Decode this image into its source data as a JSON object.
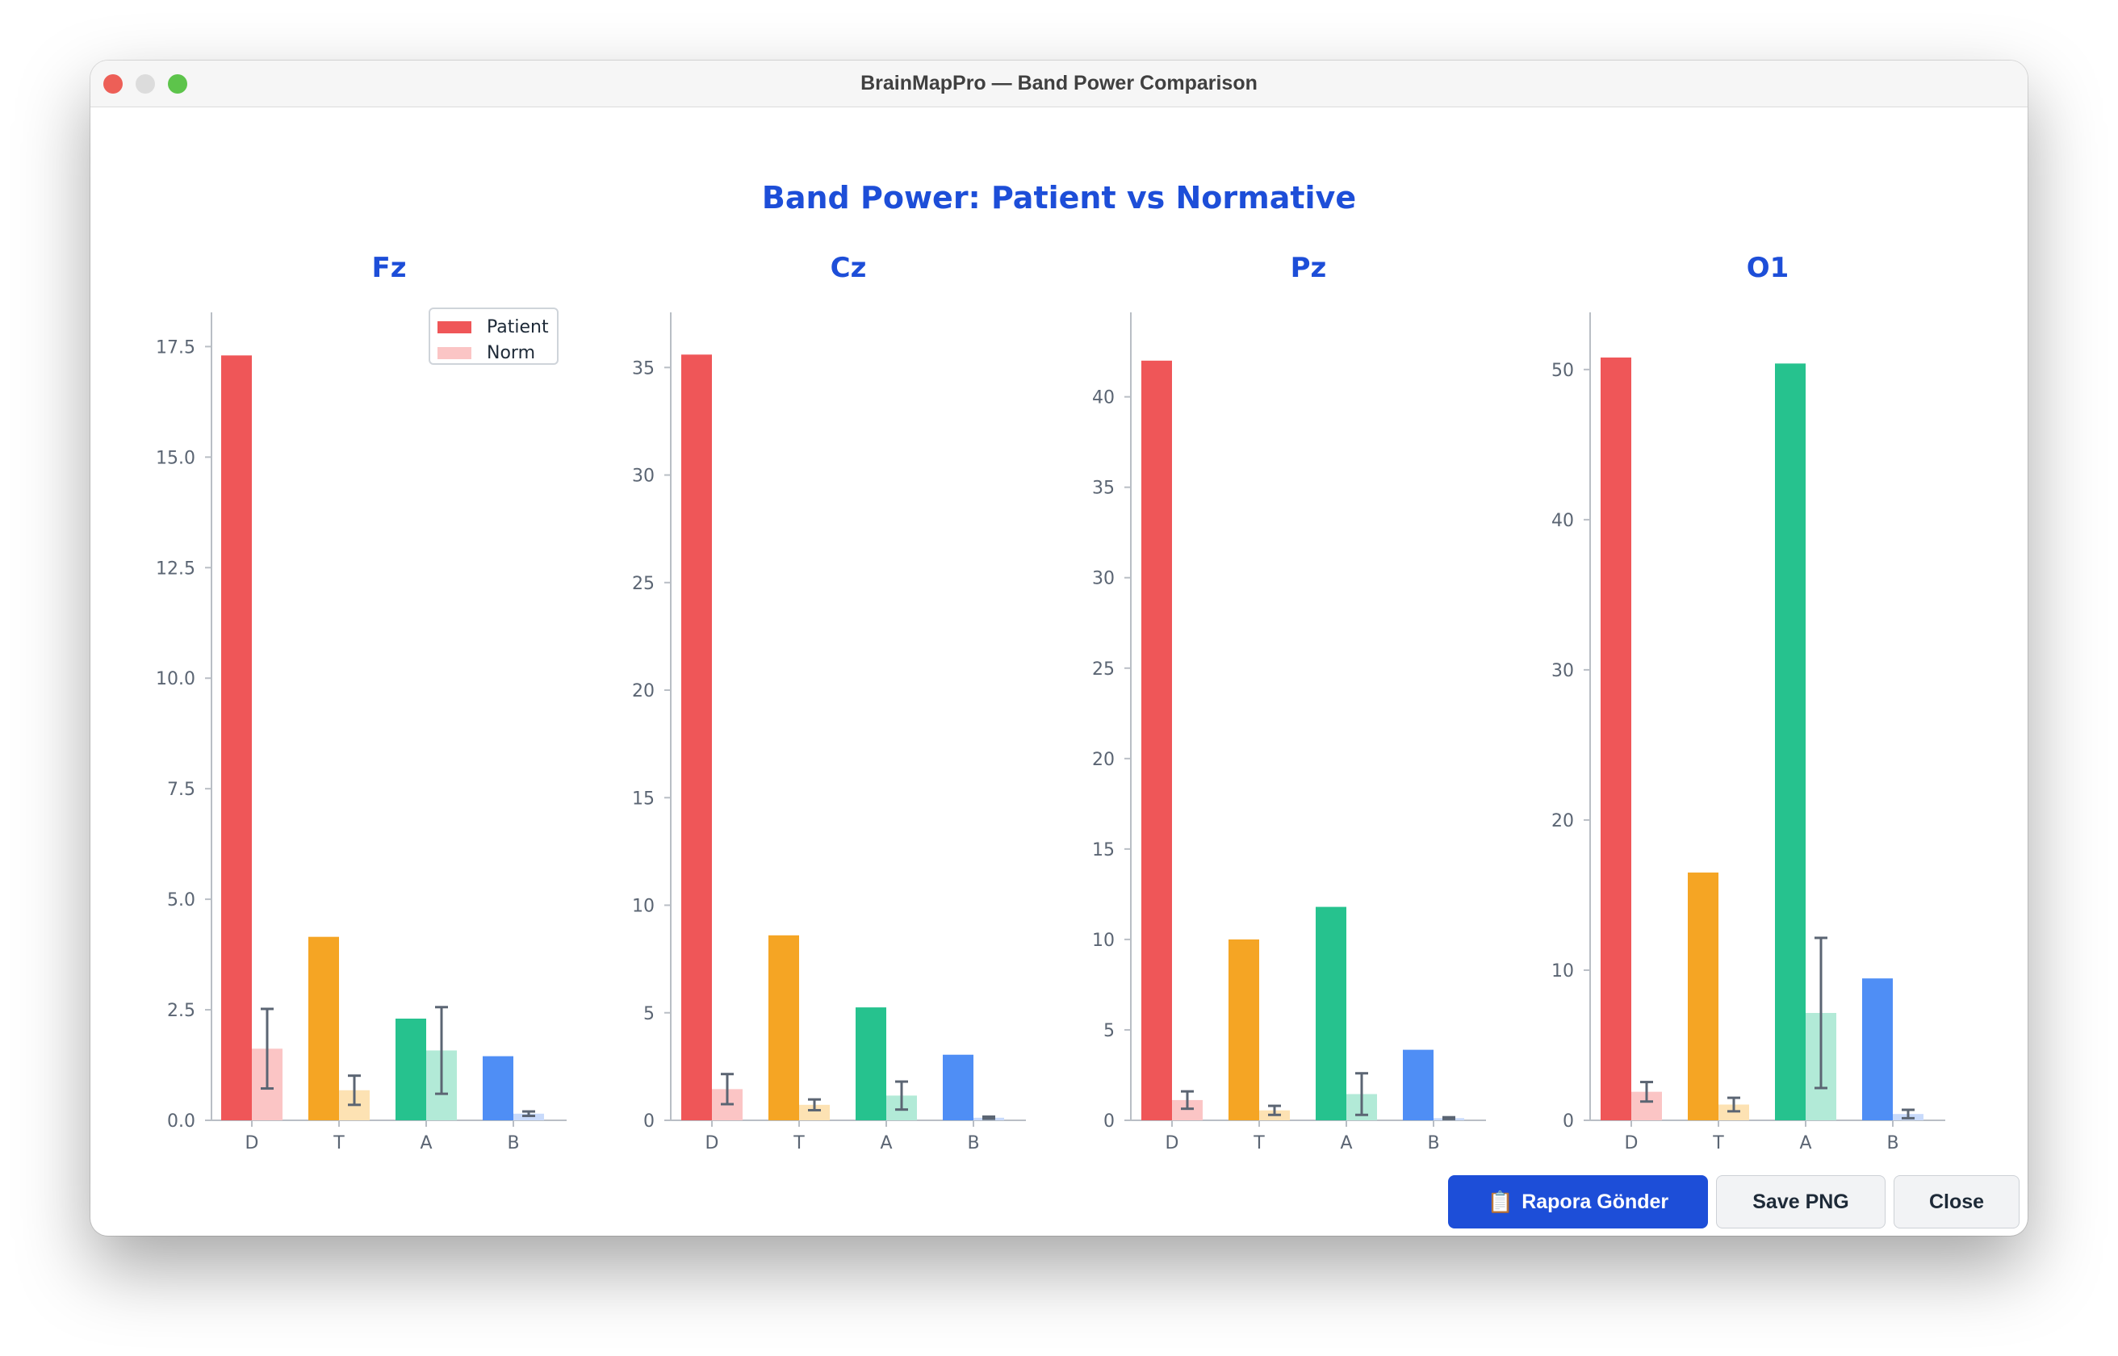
{
  "window": {
    "title": "BrainMapPro — Band Power Comparison"
  },
  "header": {
    "title": "Band Power: Patient vs Normative"
  },
  "colors": {
    "accent": "#1d4ed8",
    "patient": [
      "#ef5658",
      "#f5a524",
      "#26c28e",
      "#4f8ef5"
    ],
    "norm": [
      "#fbc5c5",
      "#fde2b3",
      "#b2ead7",
      "#c8dafb"
    ],
    "errorbar": "#5b6573",
    "axis": "#5b6573"
  },
  "buttons": {
    "send_icon": "clipboard-icon",
    "send_label": "Rapora Gönder",
    "save_label": "Save PNG",
    "close_label": "Close"
  },
  "chart_data": [
    {
      "type": "bar",
      "title": "Fz",
      "categories": [
        "D",
        "T",
        "A",
        "B"
      ],
      "ylim": [
        0,
        18
      ],
      "yticks": [
        0.0,
        2.5,
        5.0,
        7.5,
        10.0,
        12.5,
        15.0,
        17.5
      ],
      "ytick_decimals": 1,
      "legend": {
        "placement": "top-right",
        "entries": [
          "Patient",
          "Norm"
        ]
      },
      "series": [
        {
          "name": "Patient",
          "values": [
            17.3,
            4.15,
            2.3,
            1.45
          ]
        },
        {
          "name": "Norm",
          "values": [
            1.62,
            0.68,
            1.58,
            0.15
          ],
          "error": [
            0.9,
            0.33,
            0.98,
            0.05
          ]
        }
      ]
    },
    {
      "type": "bar",
      "title": "Cz",
      "categories": [
        "D",
        "T",
        "A",
        "B"
      ],
      "ylim": [
        0,
        37
      ],
      "yticks": [
        0,
        5,
        10,
        15,
        20,
        25,
        30,
        35
      ],
      "ytick_decimals": 0,
      "series": [
        {
          "name": "Patient",
          "values": [
            35.6,
            8.6,
            5.25,
            3.05
          ]
        },
        {
          "name": "Norm",
          "values": [
            1.45,
            0.72,
            1.15,
            0.12
          ],
          "error": [
            0.7,
            0.25,
            0.65,
            0.05
          ]
        }
      ]
    },
    {
      "type": "bar",
      "title": "Pz",
      "categories": [
        "D",
        "T",
        "A",
        "B"
      ],
      "ylim": [
        0,
        44
      ],
      "yticks": [
        0,
        5,
        10,
        15,
        20,
        25,
        30,
        35,
        40
      ],
      "ytick_decimals": 0,
      "series": [
        {
          "name": "Patient",
          "values": [
            42.0,
            10.0,
            11.8,
            3.9
          ]
        },
        {
          "name": "Norm",
          "values": [
            1.12,
            0.55,
            1.45,
            0.12
          ],
          "error": [
            0.48,
            0.25,
            1.15,
            0.05
          ]
        }
      ]
    },
    {
      "type": "bar",
      "title": "O1",
      "categories": [
        "D",
        "T",
        "A",
        "B"
      ],
      "ylim": [
        0,
        53
      ],
      "yticks": [
        0,
        10,
        20,
        30,
        40,
        50
      ],
      "ytick_decimals": 0,
      "series": [
        {
          "name": "Patient",
          "values": [
            50.8,
            16.5,
            50.4,
            9.45
          ]
        },
        {
          "name": "Norm",
          "values": [
            1.9,
            1.05,
            7.15,
            0.42
          ],
          "error": [
            0.65,
            0.45,
            5.0,
            0.28
          ]
        }
      ]
    }
  ]
}
